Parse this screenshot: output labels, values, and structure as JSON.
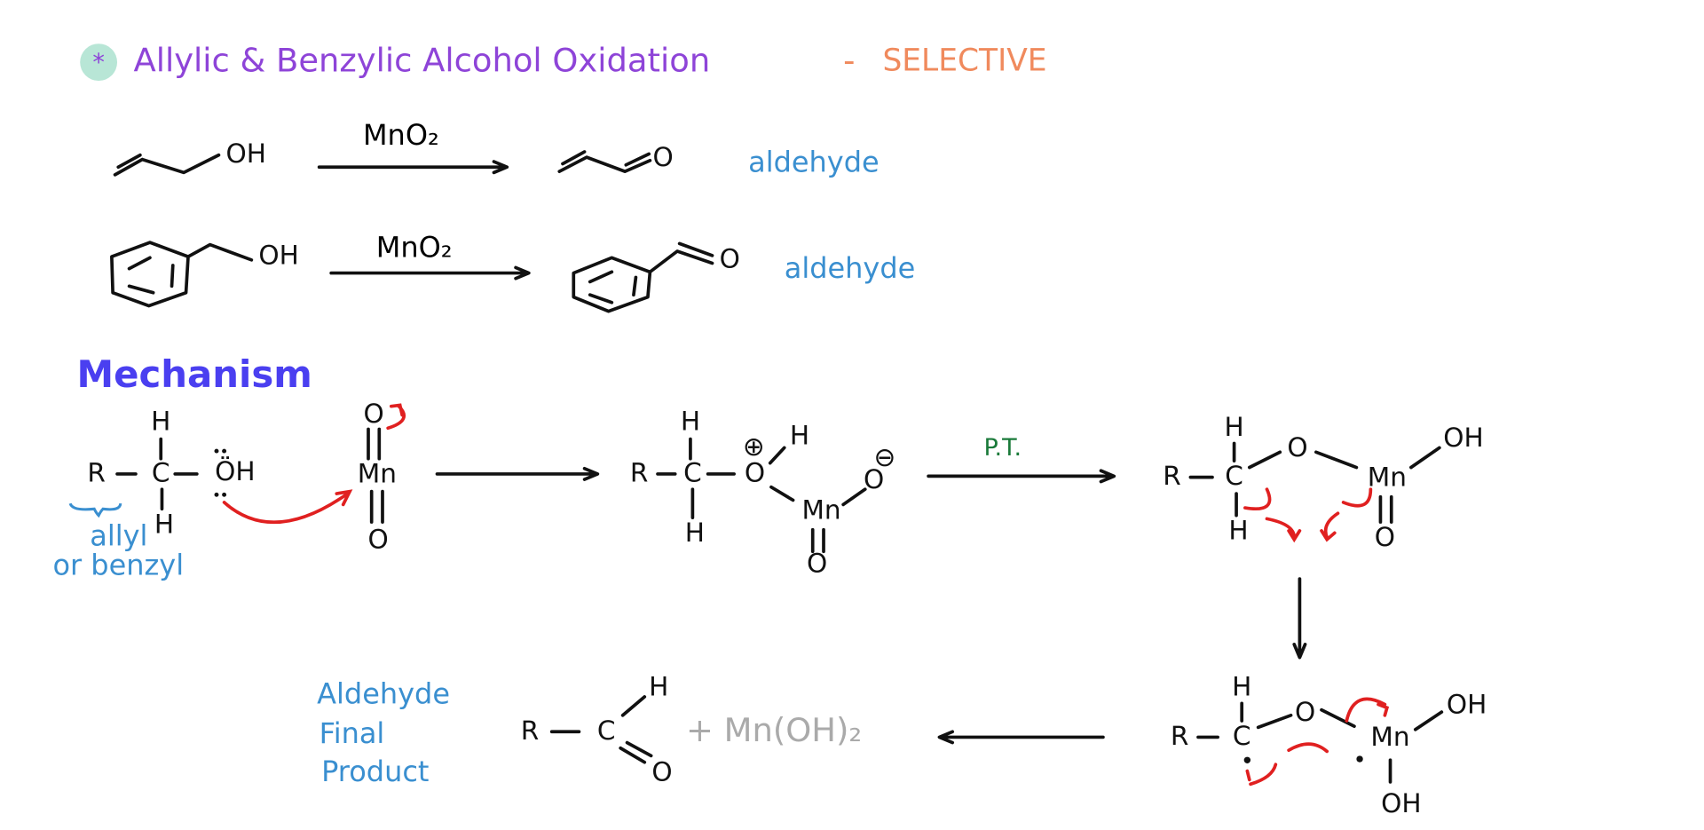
{
  "header": {
    "title": "Allylic & Benzylic Alcohol Oxidation",
    "separator": "-",
    "emphasis": "SELECTIVE"
  },
  "reactions": [
    {
      "reagent": "MnO₂",
      "product_label": "aldehyde"
    },
    {
      "reagent": "MnO₂",
      "product_label": "aldehyde"
    }
  ],
  "mechanism": {
    "title": "Mechanism",
    "note": [
      "allyl",
      "or benzyl"
    ],
    "step_label": "P.T.",
    "final_label": [
      "Aldehyde",
      "Final",
      "Product"
    ],
    "byproduct": "+ Mn(OH)₂"
  },
  "atoms": [
    "OH",
    "O",
    "OH",
    "O",
    "R",
    "C",
    "H",
    "H",
    "ÖH",
    "Mn",
    "O",
    "O",
    "R",
    "C",
    "H",
    "H",
    "O",
    "⊕",
    "H",
    "Mn",
    "O",
    "⊖",
    "O",
    "R",
    "C",
    "H",
    "H",
    "O",
    "Mn",
    "OH",
    "O",
    "R",
    "C",
    "H",
    "O",
    "Mn",
    "OH",
    "OH",
    "R",
    "C",
    "H",
    "O"
  ]
}
